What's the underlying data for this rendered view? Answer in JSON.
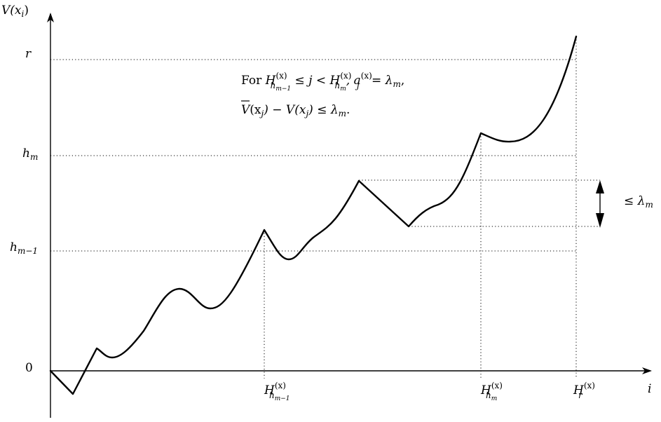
{
  "axes": {
    "y_label": {
      "main": "V(x",
      "sub": "i",
      "close": ")"
    },
    "x_label": "i",
    "origin_label": "0"
  },
  "y_levels": {
    "r": "r",
    "h_m": {
      "base": "h",
      "sub": "m"
    },
    "h_m_minus_1": {
      "base": "h",
      "sub": "m−1"
    }
  },
  "x_marks": {
    "H_h_m_minus_1": {
      "base": "H",
      "sup": "(x)",
      "sub": "h",
      "subsub": "m−1"
    },
    "H_h_m": {
      "base": "H",
      "sup": "(x)",
      "sub": "h",
      "subsub": "m"
    },
    "H_r": {
      "base": "H",
      "sup": "(x)",
      "sub": "r"
    }
  },
  "annotation": {
    "line1": {
      "for": "For ",
      "H": "H",
      "sup1": "(x)",
      "sub1": "h",
      "subsub1": "m−1",
      "leq_j_lt": " ≤ j < ",
      "H2": "H",
      "sup2": "(x)",
      "sub2": "h",
      "subsub2": "m",
      "comma_a": ", a",
      "sup3": "(x)",
      "sub3": "j",
      "eq": " = λ",
      "sub4": "m",
      "end": ","
    },
    "line2": {
      "vbar": "V",
      "mid": "(x",
      "sub1": "j",
      "minus": ") − V(x",
      "sub2": "j",
      "leq": ") ≤ λ",
      "sub3": "m",
      "end": "."
    }
  },
  "bracket_label": {
    "leq": "≤ λ",
    "sub": "m"
  }
}
